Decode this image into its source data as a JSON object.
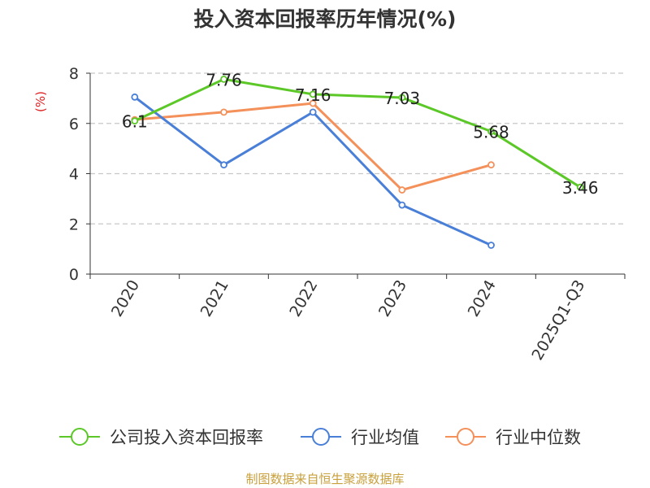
{
  "chart_data": {
    "type": "line",
    "title": "投入资本回报率历年情况(%)",
    "ylabel": "(%)",
    "xlabel": "",
    "ylim": [
      0,
      8
    ],
    "yticks": [
      0,
      2,
      4,
      6,
      8
    ],
    "grid": true,
    "legend_position": "bottom",
    "categories": [
      "2020",
      "2021",
      "2022",
      "2023",
      "2024",
      "2025Q1-Q3"
    ],
    "series": [
      {
        "name": "公司投入资本回报率",
        "color": "#5cc828",
        "show_labels": true,
        "values": [
          6.1,
          7.76,
          7.16,
          7.03,
          5.68,
          3.46
        ],
        "labels": [
          "6.1",
          "7.76",
          "7.16",
          "7.03",
          "5.68",
          "3.46"
        ]
      },
      {
        "name": "行业均值",
        "color": "#4a7fd8",
        "show_labels": false,
        "values": [
          7.05,
          4.35,
          6.45,
          2.75,
          1.15,
          null
        ]
      },
      {
        "name": "行业中位数",
        "color": "#f4905a",
        "show_labels": false,
        "values": [
          6.15,
          6.45,
          6.8,
          3.35,
          4.35,
          null
        ]
      }
    ]
  },
  "source_text": "制图数据来自恒生聚源数据库"
}
